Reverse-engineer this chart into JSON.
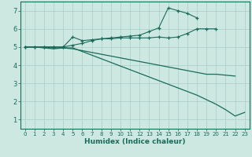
{
  "xlabel": "Humidex (Indice chaleur)",
  "background_color": "#cce8e0",
  "grid_color": "#aacccc",
  "line_color": "#1a6b5a",
  "xlim": [
    -0.5,
    23.5
  ],
  "ylim": [
    0.5,
    7.5
  ],
  "xticks": [
    0,
    1,
    2,
    3,
    4,
    5,
    6,
    7,
    8,
    9,
    10,
    11,
    12,
    13,
    14,
    15,
    16,
    17,
    18,
    19,
    20,
    21,
    22,
    23
  ],
  "yticks": [
    1,
    2,
    3,
    4,
    5,
    6,
    7
  ],
  "lines": [
    {
      "x": [
        0,
        1,
        2,
        3,
        4,
        5,
        6,
        7,
        8,
        9,
        10,
        11,
        12,
        13,
        14,
        15,
        16,
        17,
        18,
        19,
        20
      ],
      "y": [
        5.0,
        5.0,
        5.0,
        5.0,
        5.0,
        5.55,
        5.35,
        5.4,
        5.45,
        5.45,
        5.5,
        5.5,
        5.5,
        5.5,
        5.55,
        5.5,
        5.55,
        5.75,
        6.0,
        6.0,
        6.0
      ],
      "marker": true
    },
    {
      "x": [
        0,
        1,
        2,
        3,
        4,
        5,
        6,
        7,
        8,
        9,
        10,
        11,
        12,
        13,
        14,
        15,
        16,
        17,
        18
      ],
      "y": [
        5.0,
        5.0,
        5.0,
        5.0,
        5.0,
        5.1,
        5.2,
        5.35,
        5.45,
        5.5,
        5.55,
        5.6,
        5.65,
        5.85,
        6.05,
        7.15,
        7.0,
        6.85,
        6.6
      ],
      "marker": true
    },
    {
      "x": [
        0,
        1,
        2,
        3,
        4,
        5,
        6,
        7,
        8,
        9,
        10,
        11,
        12,
        13,
        14,
        15,
        16,
        17,
        18,
        19,
        20,
        21,
        22,
        23
      ],
      "y": [
        5.0,
        5.0,
        4.95,
        4.9,
        4.95,
        4.95,
        4.75,
        4.55,
        4.35,
        4.15,
        3.95,
        3.75,
        3.55,
        3.35,
        3.15,
        2.95,
        2.75,
        2.55,
        2.35,
        2.1,
        1.85,
        1.55,
        1.2,
        1.4
      ],
      "marker": false
    },
    {
      "x": [
        0,
        1,
        2,
        3,
        4,
        5,
        6,
        7,
        8,
        9,
        10,
        11,
        12,
        13,
        14,
        15,
        16,
        17,
        18,
        19,
        20,
        21,
        22
      ],
      "y": [
        5.0,
        5.0,
        5.0,
        4.95,
        4.95,
        4.9,
        4.8,
        4.7,
        4.6,
        4.5,
        4.4,
        4.3,
        4.2,
        4.1,
        4.0,
        3.9,
        3.8,
        3.7,
        3.6,
        3.5,
        3.5,
        3.45,
        3.4
      ],
      "marker": false
    }
  ]
}
